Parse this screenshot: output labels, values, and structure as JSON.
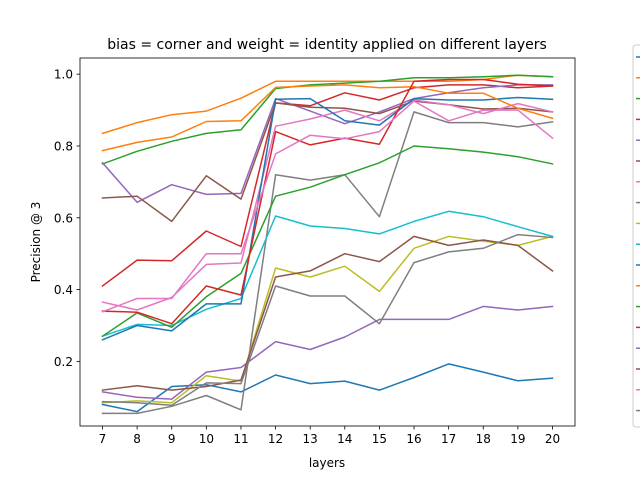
{
  "chart_data": {
    "type": "line",
    "title": "bias = corner and weight = identity applied on different layers",
    "xlabel": "layers",
    "ylabel": "Precision @ 3",
    "x": [
      7,
      8,
      9,
      10,
      11,
      12,
      13,
      14,
      15,
      16,
      17,
      18,
      19,
      20
    ],
    "xlim": [
      6.35,
      20.65
    ],
    "ylim": [
      0.02,
      1.045
    ],
    "yticks": [
      0.2,
      0.4,
      0.6,
      0.8,
      1.0
    ],
    "yticklabels": [
      "0.2",
      "0.4",
      "0.6",
      "0.8",
      "1.0"
    ],
    "grid": false,
    "legend": "outside-right",
    "series": [
      {
        "color": "#1f77b4",
        "values": [
          0.08,
          0.06,
          0.13,
          0.135,
          0.115,
          0.162,
          0.138,
          0.145,
          0.12,
          0.155,
          0.193,
          0.17,
          0.146,
          0.153
        ]
      },
      {
        "color": "#ff7f0e",
        "values": [
          0.835,
          0.865,
          0.887,
          0.897,
          0.933,
          0.98,
          0.98,
          0.98,
          0.98,
          0.98,
          0.98,
          0.985,
          0.997,
          0.993
        ]
      },
      {
        "color": "#2ca02c",
        "values": [
          0.75,
          0.785,
          0.813,
          0.835,
          0.845,
          0.96,
          0.97,
          0.975,
          0.98,
          0.99,
          0.99,
          0.993,
          0.997,
          0.993
        ]
      },
      {
        "color": "#d62728",
        "values": [
          0.41,
          0.482,
          0.48,
          0.563,
          0.52,
          0.92,
          0.912,
          0.948,
          0.928,
          0.962,
          0.97,
          0.97,
          0.962,
          0.967
        ]
      },
      {
        "color": "#9467bd",
        "values": [
          0.753,
          0.643,
          0.692,
          0.665,
          0.668,
          0.932,
          0.897,
          0.862,
          0.895,
          0.932,
          0.948,
          0.962,
          0.97,
          0.97
        ]
      },
      {
        "color": "#8c564b",
        "values": [
          0.655,
          0.66,
          0.59,
          0.717,
          0.652,
          0.92,
          0.908,
          0.905,
          0.89,
          0.925,
          0.915,
          0.903,
          0.905,
          0.895
        ]
      },
      {
        "color": "#e377c2",
        "values": [
          0.365,
          0.343,
          0.378,
          0.47,
          0.474,
          0.855,
          0.875,
          0.9,
          0.87,
          0.928,
          0.915,
          0.89,
          0.918,
          0.895
        ]
      },
      {
        "color": "#7f7f7f",
        "values": [
          0.055,
          0.055,
          0.075,
          0.105,
          0.065,
          0.72,
          0.705,
          0.72,
          0.603,
          0.895,
          0.865,
          0.865,
          0.853,
          0.867
        ]
      },
      {
        "color": "#bcbd22",
        "values": [
          0.085,
          0.09,
          0.085,
          0.16,
          0.145,
          0.46,
          0.435,
          0.465,
          0.395,
          0.515,
          0.548,
          0.535,
          0.523,
          0.548
        ]
      },
      {
        "color": "#17becf",
        "values": [
          0.27,
          0.303,
          0.3,
          0.345,
          0.375,
          0.605,
          0.577,
          0.57,
          0.555,
          0.59,
          0.618,
          0.603,
          0.575,
          0.548
        ]
      },
      {
        "color": "#1f77b4",
        "values": [
          0.26,
          0.3,
          0.285,
          0.36,
          0.36,
          0.93,
          0.932,
          0.87,
          0.858,
          0.932,
          0.928,
          0.928,
          0.935,
          0.93
        ]
      },
      {
        "color": "#ff7f0e",
        "values": [
          0.787,
          0.81,
          0.825,
          0.868,
          0.87,
          0.963,
          0.967,
          0.97,
          0.962,
          0.965,
          0.947,
          0.947,
          0.905,
          0.877
        ]
      },
      {
        "color": "#2ca02c",
        "values": [
          0.27,
          0.335,
          0.295,
          0.38,
          0.445,
          0.66,
          0.685,
          0.72,
          0.753,
          0.8,
          0.792,
          0.783,
          0.77,
          0.75
        ]
      },
      {
        "color": "#d62728",
        "values": [
          0.34,
          0.337,
          0.305,
          0.41,
          0.385,
          0.84,
          0.803,
          0.822,
          0.805,
          0.98,
          0.985,
          0.985,
          0.972,
          0.967
        ]
      },
      {
        "color": "#9467bd",
        "values": [
          0.115,
          0.1,
          0.095,
          0.17,
          0.183,
          0.255,
          0.233,
          0.268,
          0.317,
          0.317,
          0.317,
          0.353,
          0.343,
          0.353
        ]
      },
      {
        "color": "#8c564b",
        "values": [
          0.12,
          0.132,
          0.12,
          0.13,
          0.148,
          0.435,
          0.452,
          0.5,
          0.478,
          0.548,
          0.523,
          0.538,
          0.523,
          0.452
        ]
      },
      {
        "color": "#e377c2",
        "values": [
          0.338,
          0.375,
          0.375,
          0.5,
          0.5,
          0.778,
          0.83,
          0.82,
          0.84,
          0.925,
          0.87,
          0.9,
          0.9,
          0.822
        ]
      },
      {
        "color": "#7f7f7f",
        "values": [
          0.088,
          0.085,
          0.078,
          0.14,
          0.138,
          0.41,
          0.382,
          0.382,
          0.305,
          0.475,
          0.505,
          0.515,
          0.553,
          0.545
        ]
      }
    ]
  }
}
